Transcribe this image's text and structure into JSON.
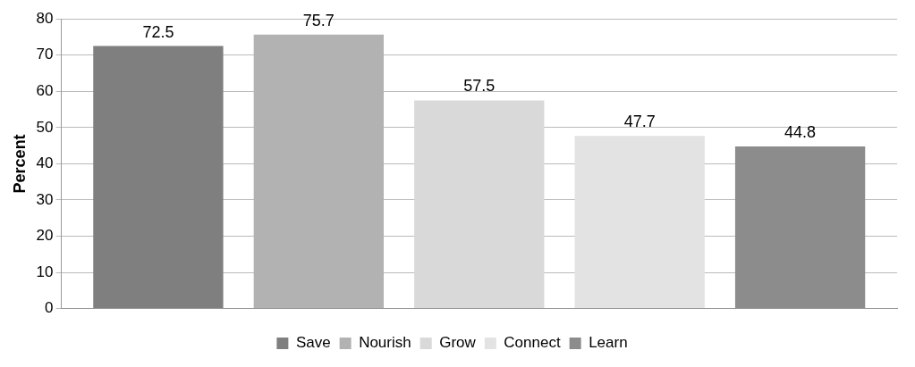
{
  "chart_data": {
    "type": "bar",
    "ylabel": "Percent",
    "categories": [
      null
    ],
    "series": [
      {
        "name": "Save",
        "color": "#7f7f7f",
        "values": [
          72.5
        ]
      },
      {
        "name": "Nourish",
        "color": "#b2b2b2",
        "values": [
          75.7
        ]
      },
      {
        "name": "Grow",
        "color": "#d9d9d9",
        "values": [
          57.5
        ]
      },
      {
        "name": "Connect",
        "color": "#e3e3e3",
        "values": [
          47.7
        ]
      },
      {
        "name": "Learn",
        "color": "#8c8c8c",
        "values": [
          44.8
        ]
      }
    ],
    "ylim": [
      0,
      80
    ],
    "yticks": [
      0,
      10,
      20,
      30,
      40,
      50,
      60,
      70,
      80
    ],
    "grid": "y",
    "legend": "bottom",
    "data_labels": true
  }
}
